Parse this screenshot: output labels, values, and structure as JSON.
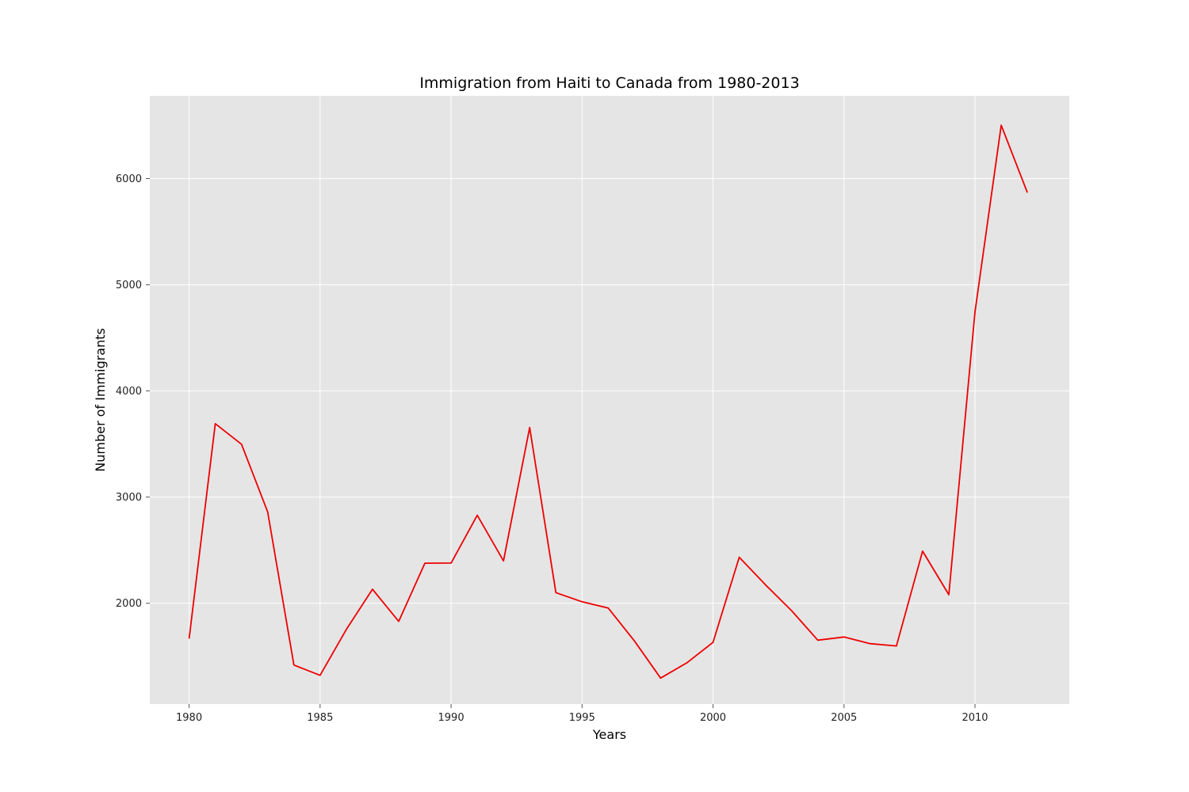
{
  "chart_data": {
    "type": "line",
    "title": "Immigration from Haiti to Canada from 1980-2013",
    "xlabel": "Years",
    "ylabel": "Number of Immigrants",
    "xlim": [
      1978.5,
      2013.6
    ],
    "ylim": [
      1050,
      6780
    ],
    "xticks": [
      1980,
      1985,
      1990,
      1995,
      2000,
      2005,
      2010
    ],
    "yticks": [
      2000,
      3000,
      4000,
      5000,
      6000
    ],
    "grid": true,
    "colors": {
      "background": "#e5e5e5",
      "grid": "#ffffff",
      "line": "#ee0000"
    },
    "series": [
      {
        "x": [
          1980,
          1981,
          1982,
          1983,
          1984,
          1985,
          1986,
          1987,
          1988,
          1989,
          1990,
          1991,
          1992,
          1993,
          1994,
          1995,
          1996,
          1997,
          1998,
          1999,
          2000,
          2001,
          2002,
          2003,
          2004,
          2005,
          2006,
          2007,
          2008,
          2009,
          2010,
          2011,
          2012
        ],
        "values": [
          1666,
          3692,
          3498,
          2860,
          1418,
          1321,
          1753,
          2132,
          1829,
          2377,
          2379,
          2829,
          2399,
          3655,
          2100,
          2014,
          1955,
          1645,
          1295,
          1439,
          1631,
          2433,
          2174,
          1930,
          1652,
          1682,
          1619,
          1598,
          2491,
          2080,
          4744,
          6503,
          5868
        ]
      }
    ]
  }
}
